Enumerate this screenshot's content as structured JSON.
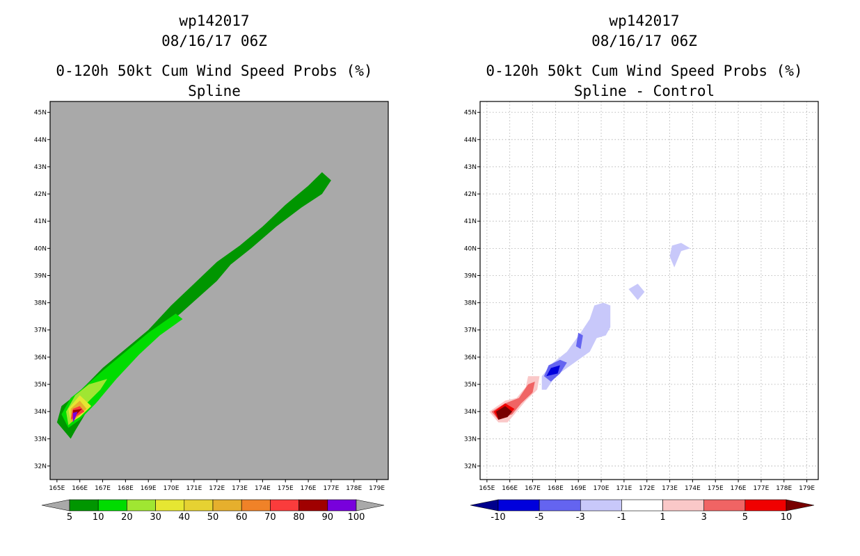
{
  "panels": [
    {
      "title_lines": [
        "wp142017",
        "08/16/17 06Z",
        "0-120h 50kt Cum Wind Speed Probs (%)",
        "Spline"
      ]
    },
    {
      "title_lines": [
        "wp142017",
        "08/16/17 06Z",
        "0-120h 50kt Cum Wind Speed Probs (%)",
        "Spline - Control"
      ]
    }
  ],
  "chart_data": [
    {
      "type": "heatmap",
      "title": "0-120h 50kt Cum Wind Speed Probs (%) — Spline",
      "background_color": "#a9a9a9",
      "grid": false,
      "x_range": [
        164.7,
        179.5
      ],
      "y_range": [
        31.5,
        45.4
      ],
      "x_ticks": [
        "165E",
        "166E",
        "167E",
        "168E",
        "169E",
        "170E",
        "171E",
        "172E",
        "173E",
        "174E",
        "175E",
        "176E",
        "177E",
        "178E",
        "179E"
      ],
      "y_ticks": [
        "32N",
        "33N",
        "34N",
        "35N",
        "36N",
        "37N",
        "38N",
        "39N",
        "40N",
        "41N",
        "42N",
        "43N",
        "44N",
        "45N"
      ],
      "colorbar": {
        "labels": [
          "5",
          "10",
          "20",
          "30",
          "40",
          "50",
          "60",
          "70",
          "80",
          "90",
          "100"
        ],
        "colors": [
          "#009600",
          "#00dc00",
          "#a0e632",
          "#e6e632",
          "#e6d232",
          "#e6af2d",
          "#f08228",
          "#fa3c3c",
          "#a00000",
          "#7800dc"
        ],
        "end_low_color": "#a9a9a9",
        "end_high_color": "#a9a9a9"
      },
      "contours": [
        {
          "level": 5,
          "color": "#009600",
          "points": [
            [
              165.6,
              33.0
            ],
            [
              165.0,
              33.6
            ],
            [
              165.2,
              34.2
            ],
            [
              165.8,
              34.6
            ],
            [
              166.3,
              35.0
            ],
            [
              167.0,
              35.6
            ],
            [
              168.0,
              36.3
            ],
            [
              169.0,
              37.0
            ],
            [
              170.0,
              37.9
            ],
            [
              171.0,
              38.7
            ],
            [
              172.0,
              39.5
            ],
            [
              173.0,
              40.1
            ],
            [
              174.0,
              40.8
            ],
            [
              175.0,
              41.6
            ],
            [
              176.0,
              42.3
            ],
            [
              176.6,
              42.8
            ],
            [
              177.0,
              42.5
            ],
            [
              176.6,
              42.0
            ],
            [
              175.7,
              41.5
            ],
            [
              174.6,
              40.8
            ],
            [
              173.5,
              40.0
            ],
            [
              172.6,
              39.4
            ],
            [
              172.0,
              38.8
            ],
            [
              171.2,
              38.2
            ],
            [
              170.4,
              37.6
            ],
            [
              169.5,
              37.0
            ],
            [
              168.6,
              36.2
            ],
            [
              167.7,
              35.4
            ],
            [
              166.8,
              34.4
            ],
            [
              166.3,
              34.0
            ],
            [
              165.8,
              33.3
            ]
          ]
        },
        {
          "level": 10,
          "color": "#00dc00",
          "points": [
            [
              165.5,
              33.4
            ],
            [
              165.2,
              33.9
            ],
            [
              165.6,
              34.5
            ],
            [
              166.2,
              34.9
            ],
            [
              167.0,
              35.5
            ],
            [
              168.0,
              36.2
            ],
            [
              169.0,
              36.9
            ],
            [
              170.2,
              37.6
            ],
            [
              170.5,
              37.4
            ],
            [
              169.5,
              36.8
            ],
            [
              168.6,
              36.1
            ],
            [
              167.6,
              35.2
            ],
            [
              166.7,
              34.3
            ],
            [
              166.0,
              33.7
            ]
          ]
        },
        {
          "level": 20,
          "color": "#a0e632",
          "points": [
            [
              165.5,
              33.5
            ],
            [
              165.4,
              34.0
            ],
            [
              165.8,
              34.6
            ],
            [
              166.4,
              35.0
            ],
            [
              167.2,
              35.2
            ],
            [
              166.9,
              34.8
            ],
            [
              166.3,
              34.3
            ],
            [
              165.9,
              33.8
            ]
          ]
        },
        {
          "level": 30,
          "color": "#e6e632",
          "points": [
            [
              165.6,
              33.6
            ],
            [
              165.5,
              34.1
            ],
            [
              166.0,
              34.6
            ],
            [
              166.5,
              34.2
            ],
            [
              166.0,
              33.8
            ]
          ]
        },
        {
          "level": 50,
          "color": "#e6af2d",
          "points": [
            [
              165.6,
              33.6
            ],
            [
              165.6,
              34.1
            ],
            [
              166.0,
              34.4
            ],
            [
              166.3,
              34.1
            ],
            [
              165.9,
              33.8
            ]
          ]
        },
        {
          "level": 70,
          "color": "#fa3c3c",
          "points": [
            [
              165.6,
              33.7
            ],
            [
              165.7,
              34.1
            ],
            [
              166.0,
              34.2
            ],
            [
              166.2,
              34.0
            ],
            [
              165.8,
              33.8
            ]
          ]
        },
        {
          "level": 80,
          "color": "#a00000",
          "points": [
            [
              165.7,
              33.7
            ],
            [
              165.7,
              34.05
            ],
            [
              166.1,
              34.1
            ],
            [
              165.8,
              33.85
            ]
          ]
        },
        {
          "level": 90,
          "color": "#7800dc",
          "points": [
            [
              165.7,
              33.6
            ],
            [
              165.7,
              33.95
            ],
            [
              165.9,
              34.0
            ],
            [
              165.8,
              33.75
            ]
          ]
        }
      ]
    },
    {
      "type": "heatmap",
      "title": "0-120h 50kt Cum Wind Speed Probs (%) — Spline - Control",
      "background_color": "#ffffff",
      "grid": true,
      "x_range": [
        164.7,
        179.5
      ],
      "y_range": [
        31.5,
        45.4
      ],
      "x_ticks": [
        "165E",
        "166E",
        "167E",
        "168E",
        "169E",
        "170E",
        "171E",
        "172E",
        "173E",
        "174E",
        "175E",
        "176E",
        "177E",
        "178E",
        "179E"
      ],
      "y_ticks": [
        "32N",
        "33N",
        "34N",
        "35N",
        "36N",
        "37N",
        "38N",
        "39N",
        "40N",
        "41N",
        "42N",
        "43N",
        "44N",
        "45N"
      ],
      "colorbar": {
        "labels": [
          "-10",
          "-5",
          "-3",
          "-1",
          "1",
          "3",
          "5",
          "10"
        ],
        "colors": [
          "#0000dc",
          "#6464f0",
          "#c8c8fa",
          "#ffffff",
          "#fac8c8",
          "#f06464",
          "#f00000"
        ],
        "end_low_color": "#00008c",
        "end_high_color": "#780000"
      },
      "contours": [
        {
          "level": -1,
          "color": "#c8c8fa",
          "points": [
            [
              173.0,
              39.7
            ],
            [
              173.1,
              40.1
            ],
            [
              173.5,
              40.2
            ],
            [
              173.9,
              40.0
            ],
            [
              173.5,
              39.9
            ],
            [
              173.2,
              39.3
            ]
          ]
        },
        {
          "level": -1,
          "color": "#c8c8fa",
          "points": [
            [
              171.2,
              38.5
            ],
            [
              171.6,
              38.7
            ],
            [
              171.9,
              38.4
            ],
            [
              171.6,
              38.1
            ]
          ]
        },
        {
          "level": -1,
          "color": "#c8c8fa",
          "points": [
            [
              167.4,
              34.8
            ],
            [
              167.4,
              35.3
            ],
            [
              167.9,
              35.8
            ],
            [
              168.5,
              36.2
            ],
            [
              169.1,
              36.9
            ],
            [
              169.5,
              37.4
            ],
            [
              169.7,
              37.9
            ],
            [
              170.1,
              38.0
            ],
            [
              170.4,
              37.9
            ],
            [
              170.4,
              37.1
            ],
            [
              170.2,
              36.8
            ],
            [
              169.8,
              36.7
            ],
            [
              169.5,
              36.2
            ],
            [
              169.0,
              35.9
            ],
            [
              168.5,
              35.6
            ],
            [
              168.0,
              35.3
            ],
            [
              167.6,
              34.8
            ]
          ]
        },
        {
          "level": -3,
          "color": "#6464f0",
          "points": [
            [
              167.5,
              35.3
            ],
            [
              167.7,
              35.7
            ],
            [
              168.2,
              35.9
            ],
            [
              168.5,
              35.8
            ],
            [
              168.2,
              35.4
            ],
            [
              167.8,
              35.1
            ]
          ]
        },
        {
          "level": -3,
          "color": "#6464f0",
          "points": [
            [
              168.9,
              36.4
            ],
            [
              169.0,
              36.9
            ],
            [
              169.2,
              36.8
            ],
            [
              169.1,
              36.3
            ]
          ]
        },
        {
          "level": -5,
          "color": "#0000dc",
          "points": [
            [
              167.6,
              35.3
            ],
            [
              167.8,
              35.6
            ],
            [
              168.2,
              35.7
            ],
            [
              168.1,
              35.4
            ]
          ]
        },
        {
          "level": 1,
          "color": "#fac8c8",
          "points": [
            [
              165.5,
              33.6
            ],
            [
              165.1,
              34.0
            ],
            [
              165.8,
              34.4
            ],
            [
              166.3,
              34.5
            ],
            [
              166.7,
              34.9
            ],
            [
              166.8,
              35.3
            ],
            [
              167.3,
              35.3
            ],
            [
              167.2,
              34.8
            ],
            [
              166.7,
              34.4
            ],
            [
              166.2,
              33.9
            ],
            [
              165.9,
              33.6
            ]
          ]
        },
        {
          "level": 3,
          "color": "#f06464",
          "points": [
            [
              165.5,
              33.7
            ],
            [
              165.2,
              34.0
            ],
            [
              165.8,
              34.3
            ],
            [
              166.4,
              34.5
            ],
            [
              166.8,
              35.0
            ],
            [
              167.1,
              35.1
            ],
            [
              167.0,
              34.7
            ],
            [
              166.5,
              34.3
            ],
            [
              166.1,
              33.9
            ]
          ]
        },
        {
          "level": 5,
          "color": "#f00000",
          "points": [
            [
              165.5,
              33.7
            ],
            [
              165.3,
              34.0
            ],
            [
              165.8,
              34.3
            ],
            [
              166.2,
              34.1
            ],
            [
              165.9,
              33.8
            ]
          ]
        },
        {
          "level": 10,
          "color": "#780000",
          "points": [
            [
              165.5,
              33.7
            ],
            [
              165.4,
              34.0
            ],
            [
              165.8,
              34.2
            ],
            [
              166.1,
              34.0
            ],
            [
              165.9,
              33.8
            ]
          ]
        }
      ]
    }
  ]
}
